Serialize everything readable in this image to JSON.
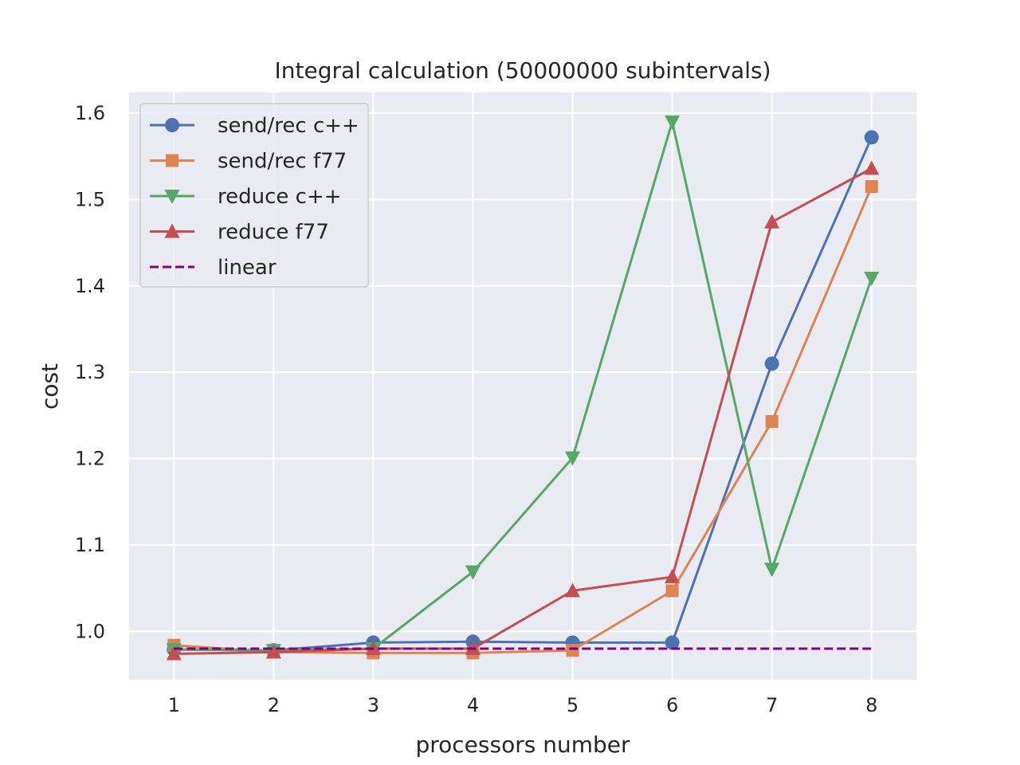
{
  "chart_data": {
    "type": "line",
    "title": "Integral calculation (50000000 subintervals)",
    "xlabel": "processors number",
    "ylabel": "cost",
    "x": [
      1,
      2,
      3,
      4,
      5,
      6,
      7,
      8
    ],
    "xlim": [
      0.55,
      8.45
    ],
    "ylim": [
      0.944,
      1.624
    ],
    "yticks": [
      1.0,
      1.1,
      1.2,
      1.3,
      1.4,
      1.5,
      1.6
    ],
    "ytick_labels": [
      "1.0",
      "1.1",
      "1.2",
      "1.3",
      "1.4",
      "1.5",
      "1.6"
    ],
    "xticks": [
      1,
      2,
      3,
      4,
      5,
      6,
      7,
      8
    ],
    "xtick_labels": [
      "1",
      "2",
      "3",
      "4",
      "5",
      "6",
      "7",
      "8"
    ],
    "grid": true,
    "background": "#eaeaf2",
    "legend_position": "top-left",
    "series": [
      {
        "name": "send/rec c++",
        "color": "#4c72b0",
        "marker": "circle",
        "dash": "solid",
        "values": [
          0.979,
          0.978,
          0.987,
          0.988,
          0.987,
          0.987,
          1.31,
          1.572
        ]
      },
      {
        "name": "send/rec f77",
        "color": "#dd8452",
        "marker": "square",
        "dash": "solid",
        "values": [
          0.984,
          0.976,
          0.975,
          0.975,
          0.978,
          1.047,
          1.243,
          1.515
        ]
      },
      {
        "name": "reduce c++",
        "color": "#55a868",
        "marker": "triangle-down",
        "dash": "solid",
        "values": [
          0.979,
          0.978,
          0.98,
          1.069,
          1.201,
          1.59,
          1.072,
          1.409
        ]
      },
      {
        "name": "reduce f77",
        "color": "#c44e52",
        "marker": "triangle-up",
        "dash": "solid",
        "values": [
          0.974,
          0.976,
          0.98,
          0.98,
          1.047,
          1.063,
          1.474,
          1.536
        ]
      },
      {
        "name": "linear",
        "color": "#800080",
        "marker": "none",
        "dash": "dashed",
        "values": [
          0.98,
          0.98,
          0.98,
          0.98,
          0.98,
          0.98,
          0.98,
          0.98
        ]
      }
    ]
  }
}
